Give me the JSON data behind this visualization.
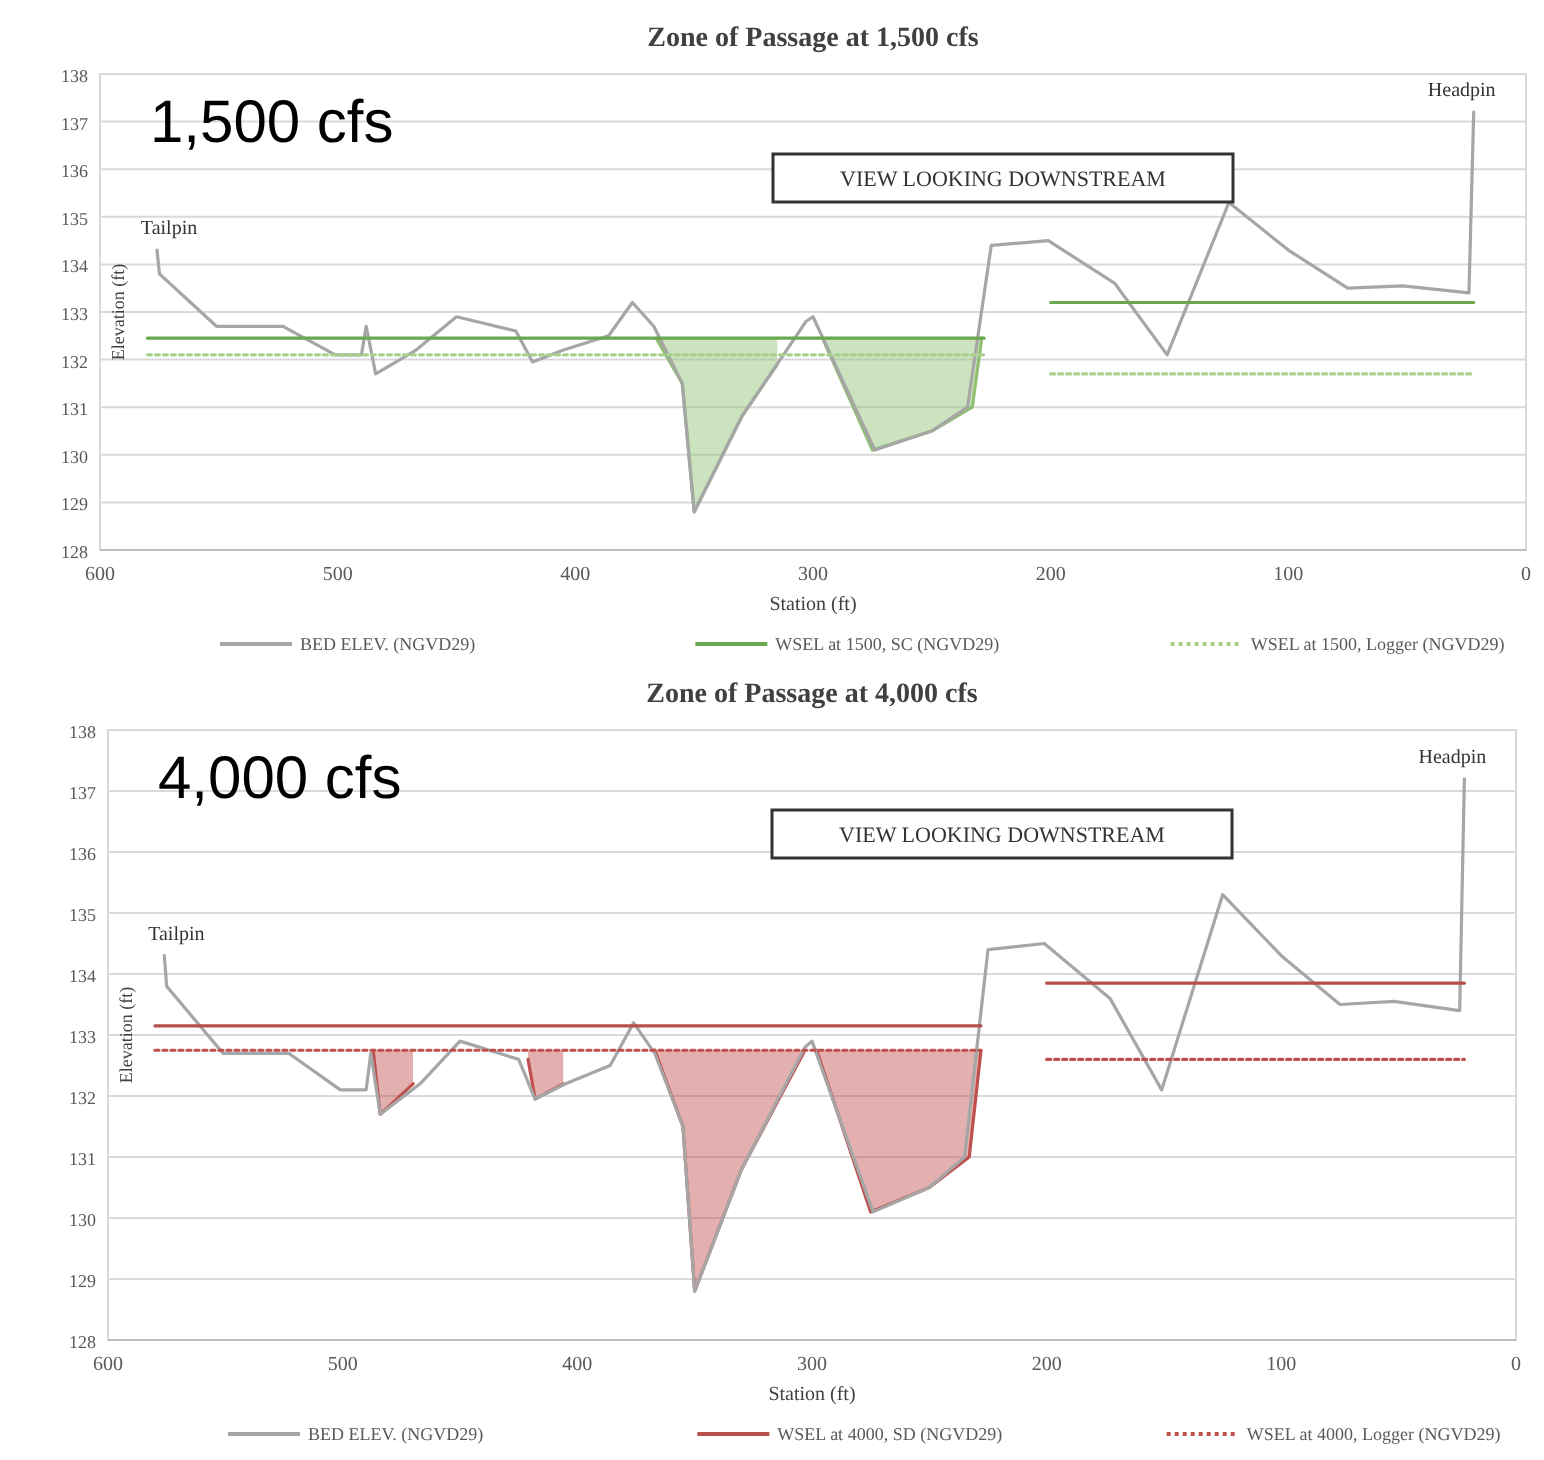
{
  "chart_data": [
    {
      "type": "line",
      "title": "Zone of Passage at 1,500 cfs",
      "xlabel": "Station (ft)",
      "ylabel": "Elevation (ft)",
      "xlim": [
        600,
        0
      ],
      "xticks": [
        600,
        500,
        400,
        300,
        200,
        100,
        0
      ],
      "ylim": [
        128,
        138
      ],
      "yticks": [
        128,
        129,
        130,
        131,
        132,
        133,
        134,
        135,
        136,
        137,
        138
      ],
      "grid": "y",
      "legend": "bottom",
      "annotations": [
        "1,500 cfs",
        "VIEW LOOKING DOWNSTREAM",
        "Tailpin",
        "Headpin"
      ],
      "series": [
        {
          "type": "line",
          "color": "#8fc070",
          "x": [
            366,
            355,
            350,
            330,
            315,
            310,
            296,
            275,
            250,
            233,
            229
          ],
          "values": [
            132.45,
            131.5,
            128.8,
            130.8,
            131.9,
            null,
            132.45,
            130.1,
            130.5,
            131.0,
            132.45
          ],
          "lower": [
            132.45,
            131.5,
            128.8,
            130.8,
            131.9,
            null,
            132.45,
            130.1,
            130.5,
            131.0,
            132.45
          ],
          "upper": [
            132.45,
            132.45,
            132.45,
            132.45,
            132.45,
            null,
            132.45,
            132.45,
            132.45,
            132.45,
            132.45
          ]
        },
        {
          "name": "BED ELEV. (NGVD29)",
          "color": "#a6a6a6",
          "line_style": "solid",
          "x": [
            576,
            575,
            551,
            523,
            501,
            490,
            488,
            484,
            467,
            450,
            425,
            418,
            405,
            386,
            376,
            367,
            355,
            350,
            330,
            303,
            300,
            274,
            250,
            235,
            225,
            201,
            173,
            151,
            125,
            100,
            75,
            52,
            24,
            22
          ],
          "values": [
            134.3,
            133.8,
            132.7,
            132.7,
            132.1,
            132.1,
            132.7,
            131.7,
            132.2,
            132.9,
            132.6,
            131.95,
            132.2,
            132.5,
            133.2,
            132.7,
            131.5,
            128.8,
            130.8,
            132.8,
            132.9,
            130.1,
            130.5,
            131.0,
            134.4,
            134.5,
            133.6,
            132.1,
            135.3,
            134.3,
            133.5,
            133.55,
            133.4,
            137.2
          ]
        },
        {
          "name": "WSEL at 1500, SC (NGVD29)",
          "color": "#6aa84f",
          "line_style": "solid",
          "x": [
            580,
            228,
            214,
            200,
            22
          ],
          "values": [
            132.45,
            132.45,
            null,
            133.2,
            133.2
          ]
        },
        {
          "name": "WSEL at 1500, Logger (NGVD29)",
          "color": "#a9d18e",
          "line_style": "dotted",
          "x": [
            580,
            228,
            214,
            200,
            22
          ],
          "values": [
            132.1,
            132.1,
            null,
            131.7,
            131.7
          ]
        }
      ]
    },
    {
      "type": "line",
      "title": "Zone of Passage at 4,000 cfs",
      "xlabel": "Station (ft)",
      "ylabel": "Elevation (ft)",
      "xlim": [
        600,
        0
      ],
      "xticks": [
        600,
        500,
        400,
        300,
        200,
        100,
        0
      ],
      "ylim": [
        128,
        138
      ],
      "yticks": [
        128,
        129,
        130,
        131,
        132,
        133,
        134,
        135,
        136,
        137,
        138
      ],
      "grid": "y",
      "legend": "bottom",
      "annotations": [
        "4,000 cfs",
        "VIEW LOOKING DOWNSTREAM",
        "Tailpin",
        "Headpin"
      ],
      "series": [
        {
          "type": "line",
          "color": "#c0504d",
          "x": [
            487,
            484,
            470,
            469,
            421,
            418,
            406,
            400,
            367,
            355,
            350,
            330,
            303,
            301,
            298,
            275,
            250,
            233,
            228
          ],
          "values": [
            132.75,
            131.7,
            132.2,
            null,
            132.6,
            131.95,
            132.2,
            null,
            132.75,
            131.5,
            128.8,
            130.8,
            132.75,
            null,
            132.75,
            130.1,
            130.5,
            131.0,
            132.75
          ],
          "lower": [
            132.75,
            131.7,
            132.2,
            null,
            132.6,
            131.95,
            132.2,
            null,
            132.75,
            131.5,
            128.8,
            130.8,
            132.75,
            null,
            132.75,
            130.1,
            130.5,
            131.0,
            132.75
          ],
          "upper": [
            132.75,
            132.75,
            132.75,
            null,
            132.75,
            132.75,
            132.75,
            null,
            132.75,
            132.75,
            132.75,
            132.75,
            132.75,
            null,
            132.75,
            132.75,
            132.75,
            132.75,
            132.75
          ]
        },
        {
          "name": "BED ELEV. (NGVD29)",
          "color": "#a6a6a6",
          "line_style": "solid",
          "x": [
            576,
            575,
            551,
            523,
            501,
            490,
            488,
            484,
            467,
            450,
            425,
            418,
            405,
            386,
            376,
            367,
            355,
            350,
            330,
            303,
            300,
            274,
            250,
            235,
            225,
            201,
            173,
            151,
            125,
            100,
            75,
            52,
            24,
            22
          ],
          "values": [
            134.3,
            133.8,
            132.7,
            132.7,
            132.1,
            132.1,
            132.7,
            131.7,
            132.2,
            132.9,
            132.6,
            131.95,
            132.2,
            132.5,
            133.2,
            132.7,
            131.5,
            128.8,
            130.8,
            132.8,
            132.9,
            130.1,
            130.5,
            131.0,
            134.4,
            134.5,
            133.6,
            132.1,
            135.3,
            134.3,
            133.5,
            133.55,
            133.4,
            137.2
          ]
        },
        {
          "name": "WSEL at 4000, SD (NGVD29)",
          "color": "#b5504a",
          "line_style": "solid",
          "x": [
            580,
            228,
            214,
            200,
            22
          ],
          "values": [
            133.15,
            133.15,
            null,
            133.85,
            133.85
          ]
        },
        {
          "name": "WSEL at 4000, Logger (NGVD29)",
          "color": "#c0504d",
          "line_style": "dotted",
          "x": [
            580,
            228,
            214,
            200,
            22
          ],
          "values": [
            132.75,
            132.75,
            null,
            132.6,
            132.6
          ]
        }
      ]
    }
  ]
}
